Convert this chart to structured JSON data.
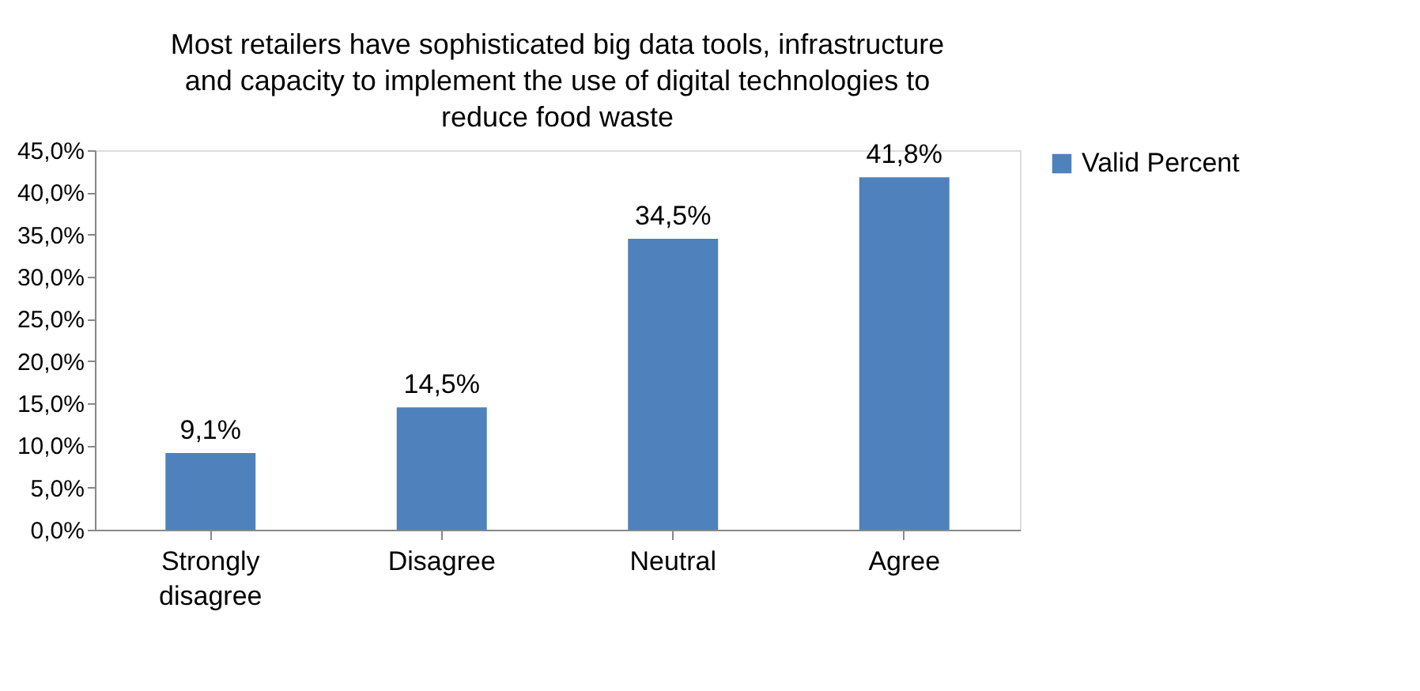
{
  "chart_data": {
    "type": "bar",
    "title": "Most retailers have sophisticated big data tools, infrastructure and capacity to implement the use of digital technologies to reduce food waste",
    "categories": [
      "Strongly disagree",
      "Disagree",
      "Neutral",
      "Agree"
    ],
    "series": [
      {
        "name": "Valid Percent",
        "color": "#4f81bd",
        "values": [
          9.1,
          14.5,
          34.5,
          41.8
        ],
        "value_labels": [
          "9,1%",
          "14,5%",
          "34,5%",
          "41,8%"
        ]
      }
    ],
    "ylim": [
      0,
      45
    ],
    "yticks": [
      {
        "value": 0,
        "label": "0,0%"
      },
      {
        "value": 5,
        "label": "5,0%"
      },
      {
        "value": 10,
        "label": "10,0%"
      },
      {
        "value": 15,
        "label": "15,0%"
      },
      {
        "value": 20,
        "label": "20,0%"
      },
      {
        "value": 25,
        "label": "25,0%"
      },
      {
        "value": 30,
        "label": "30,0%"
      },
      {
        "value": 35,
        "label": "35,0%"
      },
      {
        "value": 40,
        "label": "40,0%"
      },
      {
        "value": 45,
        "label": "45,0%"
      }
    ],
    "grid": false,
    "legend": "right"
  }
}
